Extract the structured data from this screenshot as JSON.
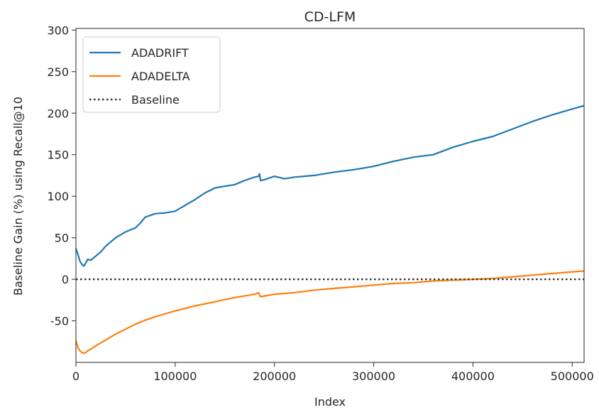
{
  "chart_data": {
    "type": "line",
    "title": "CD-LFM",
    "xlabel": "Index",
    "ylabel": "Baseline Gain (%) using Recall@10",
    "xlim": [
      0,
      512000
    ],
    "ylim": [
      -100,
      302
    ],
    "xticks": [
      0,
      100000,
      200000,
      300000,
      400000,
      500000
    ],
    "yticks": [
      -50,
      0,
      50,
      100,
      150,
      200,
      250,
      300
    ],
    "xtick_labels": [
      "0",
      "100000",
      "200000",
      "300000",
      "400000",
      "500000"
    ],
    "ytick_labels": [
      "-50",
      "0",
      "50",
      "100",
      "150",
      "200",
      "250",
      "300"
    ],
    "grid": false,
    "legend_position": "upper-left",
    "series": [
      {
        "name": "ADADRIFT",
        "color": "#1f77b4",
        "style": "solid",
        "x": [
          0,
          2000,
          4000,
          6000,
          8000,
          10000,
          12000,
          15000,
          20000,
          25000,
          30000,
          40000,
          50000,
          60000,
          65000,
          70000,
          80000,
          90000,
          100000,
          110000,
          120000,
          130000,
          140000,
          150000,
          160000,
          170000,
          180000,
          184000,
          185000,
          186000,
          190000,
          200000,
          210000,
          220000,
          240000,
          260000,
          280000,
          300000,
          320000,
          340000,
          360000,
          380000,
          400000,
          420000,
          440000,
          460000,
          480000,
          500000,
          512000
        ],
        "values": [
          37,
          30,
          22,
          18,
          16,
          20,
          24,
          23,
          28,
          33,
          40,
          50,
          57,
          62,
          68,
          75,
          79,
          80,
          82,
          89,
          96,
          104,
          110,
          112,
          114,
          119,
          123,
          124,
          127,
          119,
          120,
          124,
          121,
          123,
          125,
          129,
          132,
          136,
          142,
          147,
          150,
          159,
          166,
          172,
          181,
          190,
          198,
          205,
          209
        ]
      },
      {
        "name": "ADADELTA",
        "color": "#ff7f0e",
        "style": "solid",
        "x": [
          0,
          2000,
          4000,
          6000,
          8000,
          10000,
          12000,
          15000,
          20000,
          30000,
          40000,
          50000,
          60000,
          70000,
          80000,
          100000,
          120000,
          140000,
          160000,
          180000,
          184000,
          186000,
          190000,
          200000,
          220000,
          240000,
          260000,
          280000,
          300000,
          320000,
          340000,
          360000,
          380000,
          400000,
          420000,
          440000,
          460000,
          480000,
          500000,
          512000
        ],
        "values": [
          -74,
          -82,
          -86,
          -88,
          -89,
          -88,
          -86,
          -84,
          -80,
          -73,
          -66,
          -60,
          -54,
          -49,
          -45,
          -38,
          -32,
          -27,
          -22,
          -18,
          -16,
          -21,
          -20,
          -18,
          -16,
          -13,
          -11,
          -9,
          -7,
          -5,
          -4,
          -2,
          -1,
          0,
          1,
          3,
          5,
          7,
          9,
          10
        ]
      },
      {
        "name": "Baseline",
        "color": "#333333",
        "style": "dotted",
        "x": [
          0,
          512000
        ],
        "values": [
          0,
          0
        ]
      }
    ]
  }
}
